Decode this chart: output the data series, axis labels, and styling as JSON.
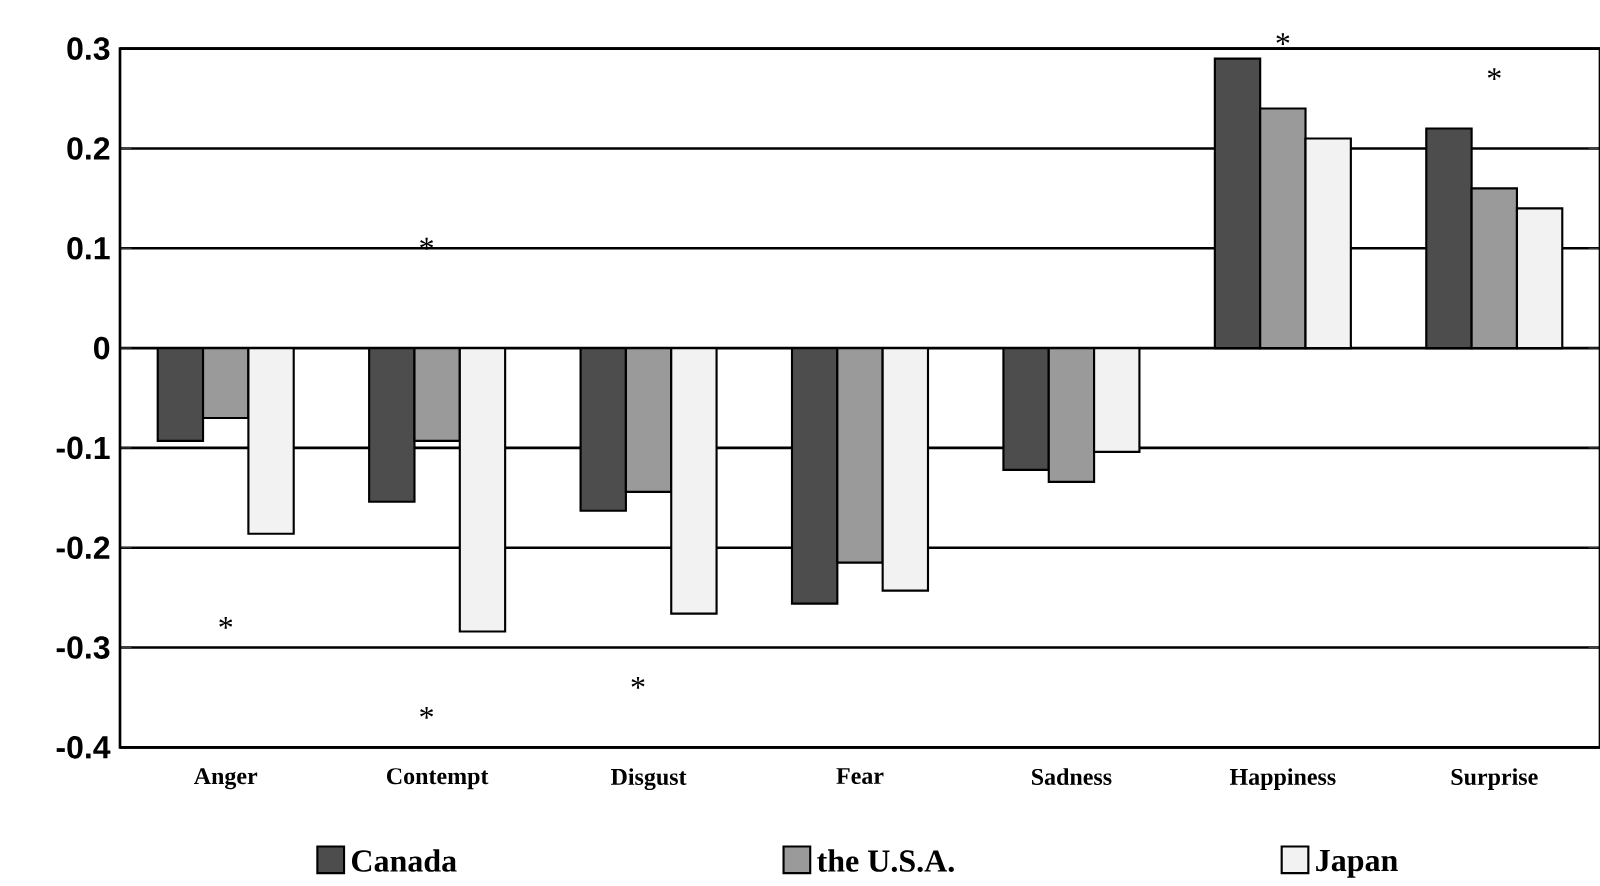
{
  "chart_data": {
    "type": "bar",
    "categories": [
      "Anger",
      "Contempt",
      "Disgust",
      "Fear",
      "Sadness",
      "Happiness",
      "Surprise"
    ],
    "series": [
      {
        "name": "Canada",
        "color": "#4d4d4d",
        "values": [
          -0.093,
          -0.154,
          -0.163,
          -0.256,
          -0.122,
          0.29,
          0.22
        ]
      },
      {
        "name": "the U.S.A.",
        "color": "#9a9a9a",
        "values": [
          -0.07,
          -0.093,
          -0.144,
          -0.215,
          -0.134,
          0.24,
          0.16
        ]
      },
      {
        "name": "Japan",
        "color": "#f2f2f2",
        "values": [
          -0.186,
          -0.284,
          -0.266,
          -0.243,
          -0.104,
          0.21,
          0.14
        ]
      }
    ],
    "ylim": [
      -0.4,
      0.3
    ],
    "yticks": [
      -0.4,
      -0.3,
      -0.2,
      -0.1,
      0,
      0.1,
      0.2,
      0.3
    ],
    "grid": "y",
    "legend": "bottom",
    "annotations": [
      "*",
      "*",
      "*",
      "*",
      "*",
      "*"
    ]
  }
}
